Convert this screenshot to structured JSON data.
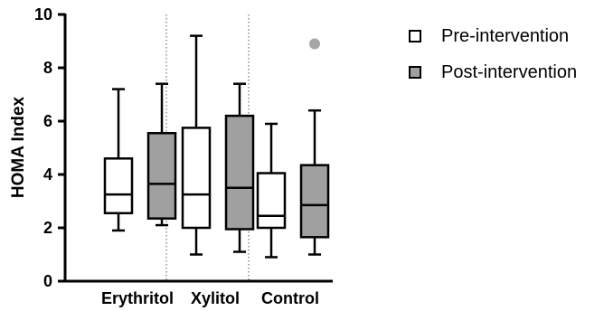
{
  "chart_data": {
    "type": "box",
    "ylabel": "HOMA Index",
    "ylim": [
      0,
      10
    ],
    "yticks": [
      0,
      2,
      4,
      6,
      8,
      10
    ],
    "categories": [
      "Erythritol",
      "Xylitol",
      "Control"
    ],
    "grid": false,
    "legend_position": "top-right",
    "series": [
      {
        "name": "Pre-intervention",
        "color": "#ffffff",
        "boxes": [
          {
            "min": 1.9,
            "q1": 2.55,
            "median": 3.25,
            "q3": 4.6,
            "max": 7.2,
            "outliers": []
          },
          {
            "min": 1.0,
            "q1": 2.0,
            "median": 3.25,
            "q3": 5.75,
            "max": 9.2,
            "outliers": []
          },
          {
            "min": 0.9,
            "q1": 2.0,
            "median": 2.45,
            "q3": 4.05,
            "max": 5.9,
            "outliers": []
          }
        ]
      },
      {
        "name": "Post-intervention",
        "color": "#a0a0a0",
        "boxes": [
          {
            "min": 2.1,
            "q1": 2.35,
            "median": 3.65,
            "q3": 5.55,
            "max": 7.4,
            "outliers": []
          },
          {
            "min": 1.1,
            "q1": 1.95,
            "median": 3.5,
            "q3": 6.2,
            "max": 7.4,
            "outliers": []
          },
          {
            "min": 1.0,
            "q1": 1.65,
            "median": 2.85,
            "q3": 4.35,
            "max": 6.4,
            "outliers": [
              8.9
            ]
          }
        ]
      }
    ],
    "outlier_color": "#a6a6a6"
  }
}
